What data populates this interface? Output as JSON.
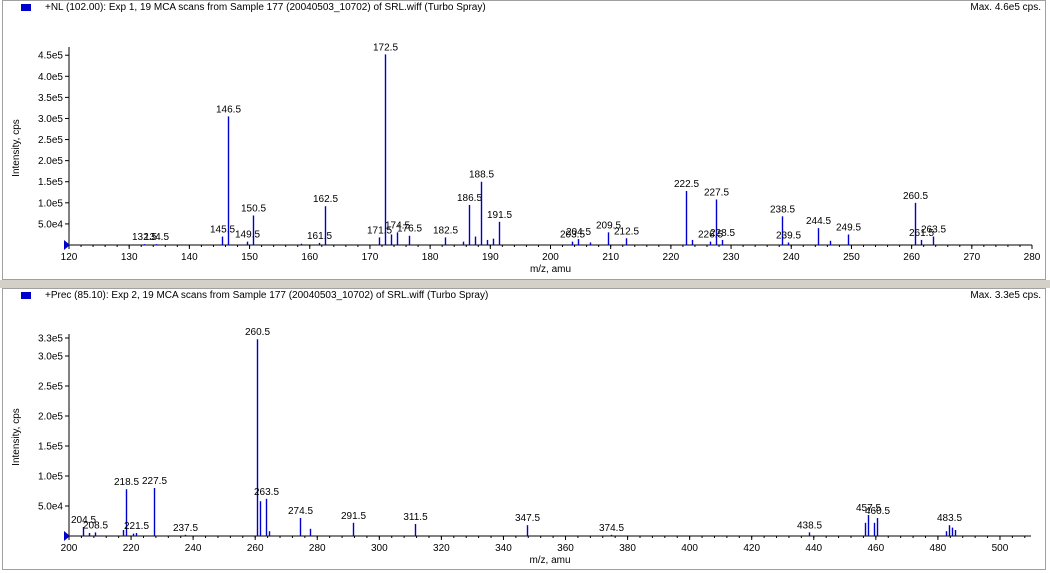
{
  "colors": {
    "trace": "#0000cc",
    "axis": "#000000",
    "divider": "#d4d0c8"
  },
  "panel1": {
    "title": "+NL (102.00): Exp 1, 19 MCA scans from Sample 177 (20040503_10702) of SRL.wiff (Turbo Spray)",
    "max_label": "Max. 4.6e5 cps.",
    "legend_icon": "blue-square-icon"
  },
  "panel2": {
    "title": "+Prec (85.10): Exp 2, 19 MCA scans from Sample 177 (20040503_10702) of SRL.wiff (Turbo Spray)",
    "max_label": "Max. 3.3e5 cps.",
    "legend_icon": "blue-square-icon"
  },
  "chart_data": [
    {
      "type": "bar",
      "xlabel": "m/z, amu",
      "ylabel": "Intensity, cps",
      "xlim": [
        120,
        280
      ],
      "ylim": [
        0,
        460000
      ],
      "xticks": [
        120,
        130,
        140,
        150,
        160,
        170,
        180,
        190,
        200,
        210,
        220,
        230,
        240,
        250,
        260,
        270,
        280
      ],
      "yticks": [
        {
          "v": 50000,
          "label": "5.0e4"
        },
        {
          "v": 100000,
          "label": "1.0e5"
        },
        {
          "v": 150000,
          "label": "1.5e5"
        },
        {
          "v": 200000,
          "label": "2.0e5"
        },
        {
          "v": 250000,
          "label": "2.5e5"
        },
        {
          "v": 300000,
          "label": "3.0e5"
        },
        {
          "v": 350000,
          "label": "3.5e5"
        },
        {
          "v": 400000,
          "label": "4.0e5"
        },
        {
          "v": 450000,
          "label": "4.5e5"
        }
      ],
      "peaks": [
        {
          "x": 132.5,
          "y": 2000,
          "label": "132.5"
        },
        {
          "x": 134.5,
          "y": 2000,
          "label": "134.5"
        },
        {
          "x": 145.5,
          "y": 20000,
          "label": "145.5"
        },
        {
          "x": 146.5,
          "y": 305000,
          "label": "146.5"
        },
        {
          "x": 149.5,
          "y": 8000,
          "label": "149.5"
        },
        {
          "x": 150.5,
          "y": 70000,
          "label": "150.5"
        },
        {
          "x": 158.5,
          "y": 3000
        },
        {
          "x": 161.5,
          "y": 5000,
          "label": "161.5"
        },
        {
          "x": 162.5,
          "y": 92000,
          "label": "162.5"
        },
        {
          "x": 171.5,
          "y": 18000,
          "label": "171.5"
        },
        {
          "x": 172.5,
          "y": 452000,
          "label": "172.5"
        },
        {
          "x": 173.5,
          "y": 25000
        },
        {
          "x": 174.5,
          "y": 30000,
          "label": "174.5"
        },
        {
          "x": 176.5,
          "y": 22000,
          "label": "176.5"
        },
        {
          "x": 182.5,
          "y": 18000,
          "label": "182.5"
        },
        {
          "x": 185.5,
          "y": 8000
        },
        {
          "x": 186.5,
          "y": 95000,
          "label": "186.5"
        },
        {
          "x": 187.5,
          "y": 20000
        },
        {
          "x": 188.5,
          "y": 150000,
          "label": "188.5"
        },
        {
          "x": 189.5,
          "y": 12000
        },
        {
          "x": 190.5,
          "y": 15000
        },
        {
          "x": 191.5,
          "y": 55000,
          "label": "191.5"
        },
        {
          "x": 203.5,
          "y": 8000,
          "label": "203.5"
        },
        {
          "x": 204.5,
          "y": 14000,
          "label": "204.5"
        },
        {
          "x": 206.5,
          "y": 6000
        },
        {
          "x": 209.5,
          "y": 30000,
          "label": "209.5"
        },
        {
          "x": 212.5,
          "y": 16000,
          "label": "212.5"
        },
        {
          "x": 222.5,
          "y": 128000,
          "label": "222.5"
        },
        {
          "x": 223.5,
          "y": 12000
        },
        {
          "x": 226.5,
          "y": 8000,
          "label": "226.5"
        },
        {
          "x": 227.5,
          "y": 108000,
          "label": "227.5"
        },
        {
          "x": 228.5,
          "y": 12000,
          "label": "228.5"
        },
        {
          "x": 238.5,
          "y": 68000,
          "label": "238.5"
        },
        {
          "x": 239.5,
          "y": 6000,
          "label": "239.5"
        },
        {
          "x": 244.5,
          "y": 40000,
          "label": "244.5"
        },
        {
          "x": 246.5,
          "y": 10000
        },
        {
          "x": 249.5,
          "y": 25000,
          "label": "249.5"
        },
        {
          "x": 260.5,
          "y": 100000,
          "label": "260.5"
        },
        {
          "x": 261.5,
          "y": 12000,
          "label": "261.5"
        },
        {
          "x": 263.5,
          "y": 20000,
          "label": "263.5"
        }
      ]
    },
    {
      "type": "bar",
      "xlabel": "m/z, amu",
      "ylabel": "Intensity, cps",
      "xlim": [
        200,
        510
      ],
      "ylim": [
        0,
        330000
      ],
      "xticks": [
        200,
        220,
        240,
        260,
        280,
        300,
        320,
        340,
        360,
        380,
        400,
        420,
        440,
        460,
        480,
        500
      ],
      "yticks": [
        {
          "v": 50000,
          "label": "5.0e4"
        },
        {
          "v": 100000,
          "label": "1.0e5"
        },
        {
          "v": 150000,
          "label": "1.5e5"
        },
        {
          "v": 200000,
          "label": "2.0e5"
        },
        {
          "v": 250000,
          "label": "2.5e5"
        },
        {
          "v": 300000,
          "label": "3.0e5"
        },
        {
          "v": 330000,
          "label": "3.3e5"
        }
      ],
      "peaks": [
        {
          "x": 204.5,
          "y": 15000,
          "label": "204.5"
        },
        {
          "x": 206.5,
          "y": 5000
        },
        {
          "x": 208.5,
          "y": 6000,
          "label": "208.5"
        },
        {
          "x": 217.5,
          "y": 10000
        },
        {
          "x": 218.5,
          "y": 78000,
          "label": "218.5"
        },
        {
          "x": 220.5,
          "y": 4000
        },
        {
          "x": 221.5,
          "y": 5000,
          "label": "221.5"
        },
        {
          "x": 227.5,
          "y": 80000,
          "label": "227.5"
        },
        {
          "x": 237.5,
          "y": 2000,
          "label": "237.5"
        },
        {
          "x": 260.5,
          "y": 328000,
          "label": "260.5"
        },
        {
          "x": 261.5,
          "y": 58000
        },
        {
          "x": 263.5,
          "y": 62000,
          "label": "263.5"
        },
        {
          "x": 264.5,
          "y": 8000
        },
        {
          "x": 274.5,
          "y": 30000,
          "label": "274.5"
        },
        {
          "x": 277.5,
          "y": 12000
        },
        {
          "x": 291.5,
          "y": 22000,
          "label": "291.5"
        },
        {
          "x": 311.5,
          "y": 20000,
          "label": "311.5"
        },
        {
          "x": 347.5,
          "y": 18000,
          "label": "347.5"
        },
        {
          "x": 374.5,
          "y": 2000,
          "label": "374.5"
        },
        {
          "x": 438.5,
          "y": 6000,
          "label": "438.5"
        },
        {
          "x": 456.5,
          "y": 22000
        },
        {
          "x": 457.5,
          "y": 35000,
          "label": "457.5"
        },
        {
          "x": 459.5,
          "y": 22000
        },
        {
          "x": 460.5,
          "y": 30000,
          "label": "460.5"
        },
        {
          "x": 482.5,
          "y": 8000
        },
        {
          "x": 483.5,
          "y": 18000,
          "label": "483.5"
        },
        {
          "x": 484.5,
          "y": 14000
        },
        {
          "x": 485.5,
          "y": 10000
        }
      ]
    }
  ]
}
